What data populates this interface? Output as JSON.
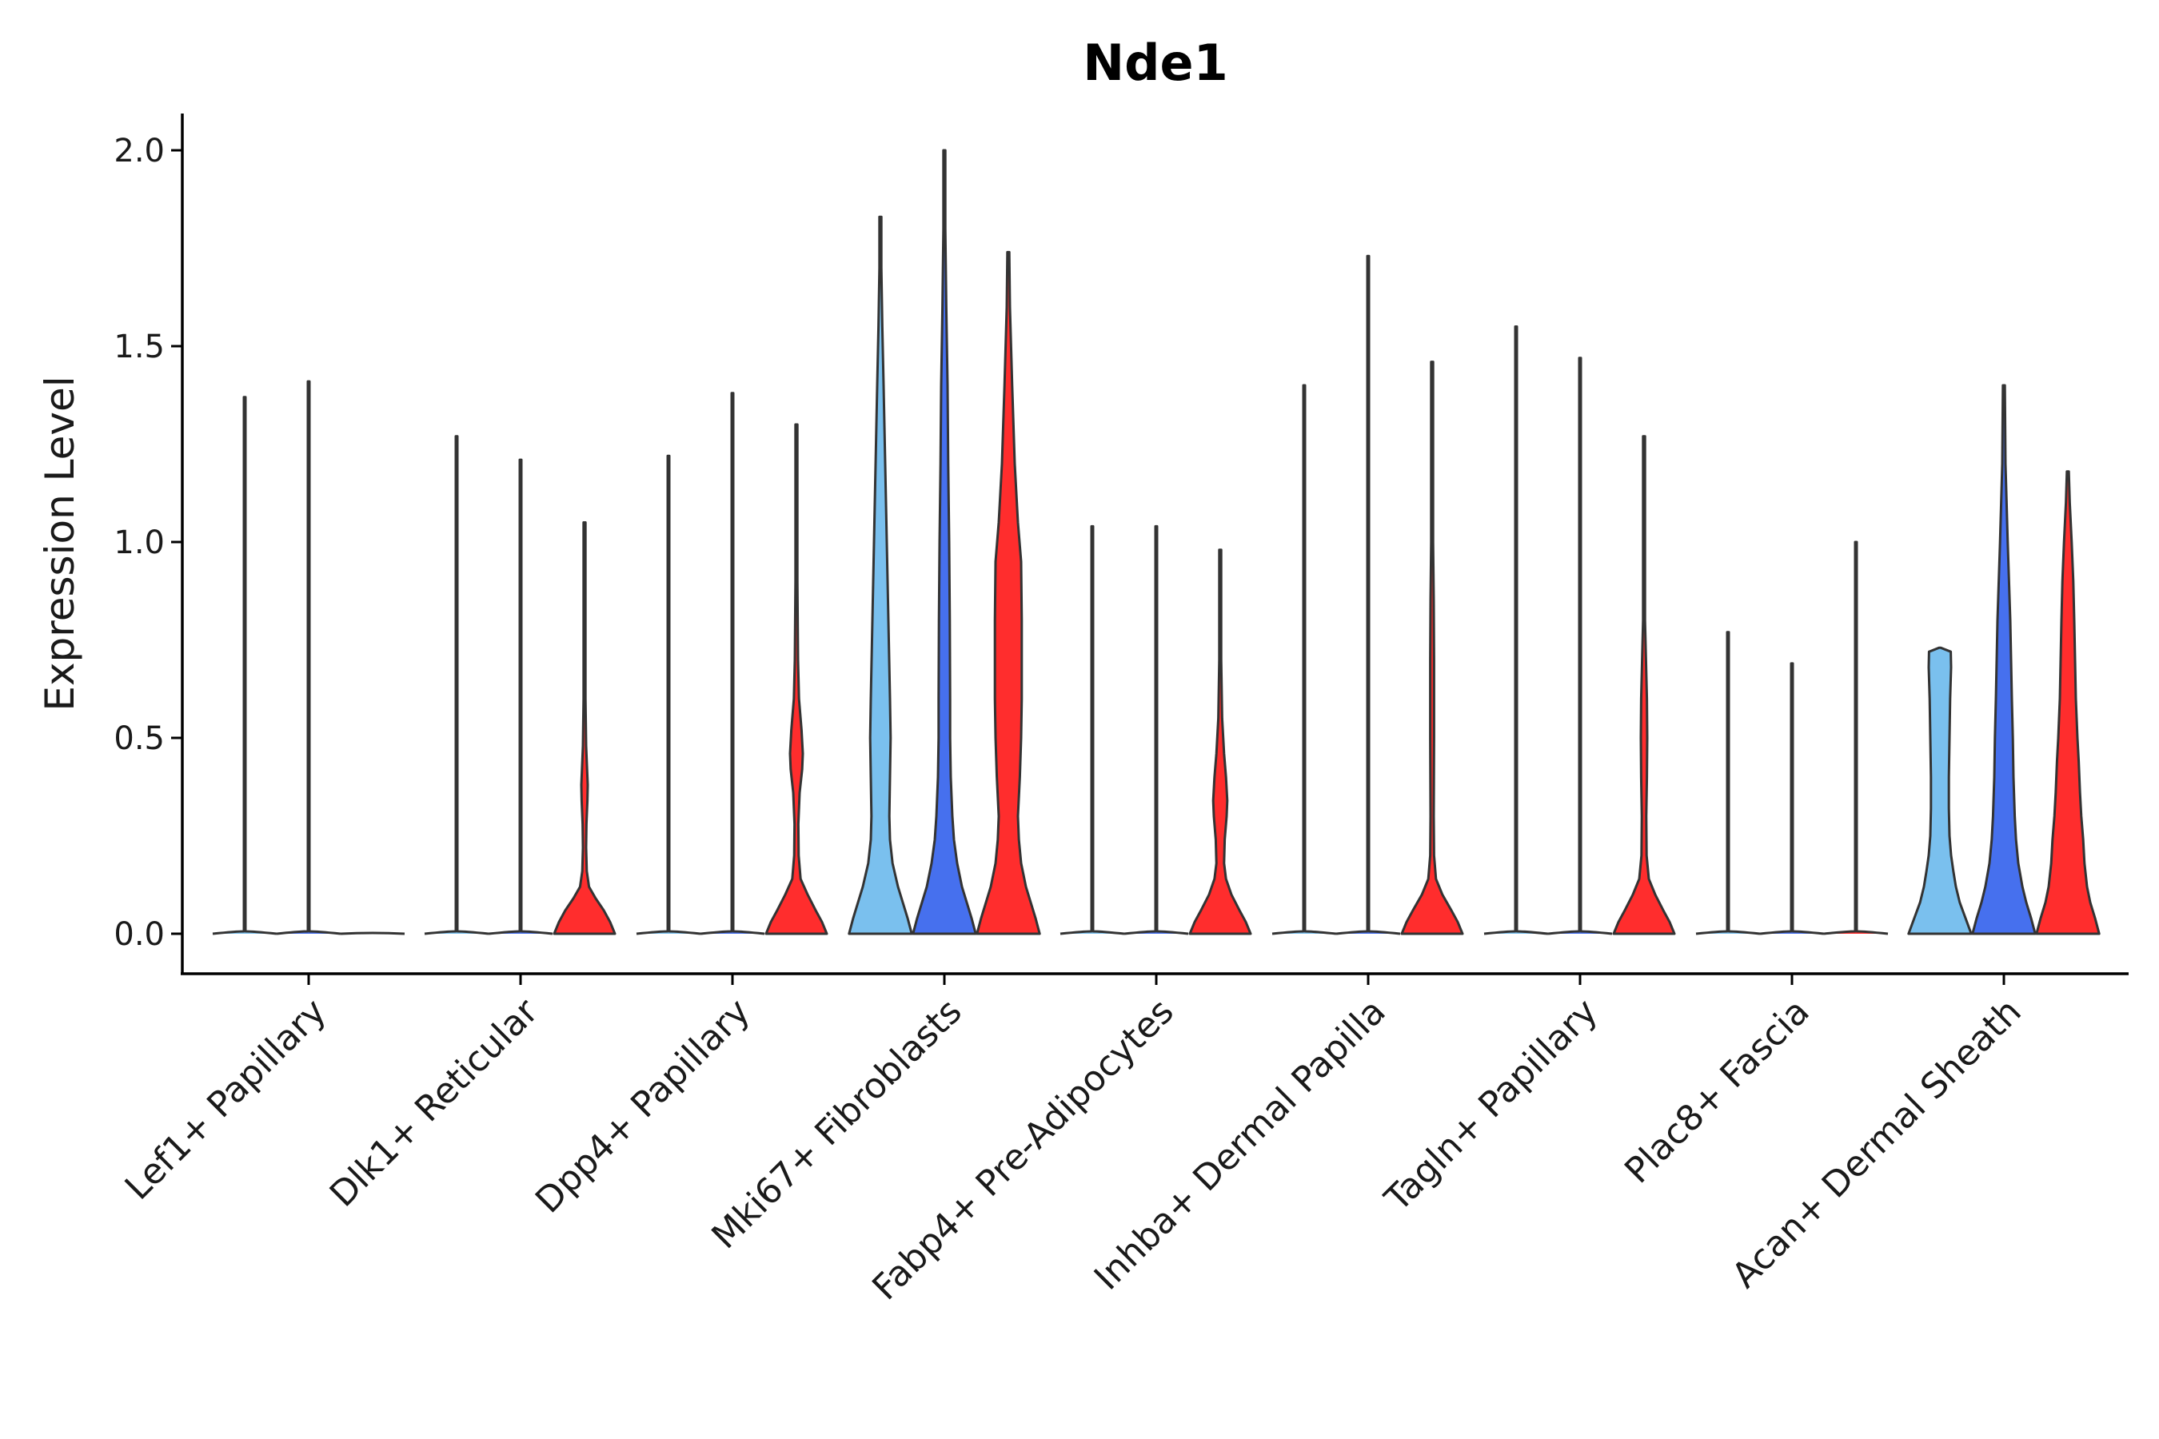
{
  "chart_data": {
    "type": "violin",
    "title": "Nde1",
    "xlabel": "",
    "ylabel": "Expression Level",
    "ylim": [
      -0.1,
      2.1
    ],
    "yticks": [
      "0.0",
      "0.5",
      "1.0",
      "1.5",
      "2.0"
    ],
    "grid": false,
    "legend": "none",
    "series_colors": [
      "#7ac0ee",
      "#4670ee",
      "#ff2d2d"
    ],
    "categories": [
      {
        "label": "Lef1+ Papillary",
        "violins": [
          {
            "max": 1.37,
            "profile": "spike"
          },
          {
            "max": 1.41,
            "profile": "spike"
          },
          null
        ]
      },
      {
        "label": "Dlk1+ Reticular",
        "violins": [
          {
            "max": 1.27,
            "profile": "spike"
          },
          {
            "max": 1.21,
            "profile": "spike"
          },
          {
            "max": 1.05,
            "profile": [
              [
                0,
                0.95
              ],
              [
                0.03,
                0.8
              ],
              [
                0.06,
                0.6
              ],
              [
                0.09,
                0.35
              ],
              [
                0.12,
                0.14
              ],
              [
                0.16,
                0.07
              ],
              [
                0.22,
                0.05
              ],
              [
                0.28,
                0.06
              ],
              [
                0.34,
                0.09
              ],
              [
                0.38,
                0.1
              ],
              [
                0.42,
                0.08
              ],
              [
                0.48,
                0.05
              ],
              [
                0.6,
                0.03
              ],
              [
                0.8,
                0.02
              ],
              [
                1.05,
                0
              ]
            ]
          }
        ]
      },
      {
        "label": "Dpp4+ Papillary",
        "violins": [
          {
            "max": 1.22,
            "profile": "spike"
          },
          {
            "max": 1.38,
            "profile": "spike"
          },
          {
            "max": 1.3,
            "profile": [
              [
                0,
                0.95
              ],
              [
                0.03,
                0.8
              ],
              [
                0.06,
                0.6
              ],
              [
                0.1,
                0.35
              ],
              [
                0.14,
                0.13
              ],
              [
                0.2,
                0.07
              ],
              [
                0.28,
                0.06
              ],
              [
                0.36,
                0.1
              ],
              [
                0.42,
                0.18
              ],
              [
                0.46,
                0.2
              ],
              [
                0.52,
                0.16
              ],
              [
                0.6,
                0.08
              ],
              [
                0.7,
                0.05
              ],
              [
                0.9,
                0.03
              ],
              [
                1.3,
                0
              ]
            ]
          }
        ]
      },
      {
        "label": "Mki67+ Fibroblasts",
        "violins": [
          {
            "max": 1.83,
            "profile": [
              [
                0,
                0.98
              ],
              [
                0.04,
                0.85
              ],
              [
                0.08,
                0.7
              ],
              [
                0.12,
                0.55
              ],
              [
                0.18,
                0.38
              ],
              [
                0.24,
                0.3
              ],
              [
                0.3,
                0.28
              ],
              [
                0.4,
                0.3
              ],
              [
                0.5,
                0.32
              ],
              [
                0.6,
                0.3
              ],
              [
                0.8,
                0.25
              ],
              [
                1.0,
                0.2
              ],
              [
                1.2,
                0.15
              ],
              [
                1.4,
                0.1
              ],
              [
                1.55,
                0.06
              ],
              [
                1.7,
                0.03
              ],
              [
                1.83,
                0
              ]
            ]
          },
          {
            "max": 2.0,
            "profile": [
              [
                0,
                0.98
              ],
              [
                0.04,
                0.85
              ],
              [
                0.08,
                0.7
              ],
              [
                0.12,
                0.55
              ],
              [
                0.18,
                0.4
              ],
              [
                0.24,
                0.3
              ],
              [
                0.3,
                0.25
              ],
              [
                0.4,
                0.2
              ],
              [
                0.5,
                0.18
              ],
              [
                0.6,
                0.18
              ],
              [
                0.8,
                0.17
              ],
              [
                1.0,
                0.15
              ],
              [
                1.2,
                0.12
              ],
              [
                1.4,
                0.1
              ],
              [
                1.6,
                0.06
              ],
              [
                1.8,
                0.03
              ],
              [
                2.0,
                0
              ]
            ]
          },
          {
            "max": 1.74,
            "profile": [
              [
                0,
                0.98
              ],
              [
                0.04,
                0.85
              ],
              [
                0.08,
                0.7
              ],
              [
                0.12,
                0.55
              ],
              [
                0.18,
                0.4
              ],
              [
                0.24,
                0.33
              ],
              [
                0.3,
                0.3
              ],
              [
                0.4,
                0.36
              ],
              [
                0.5,
                0.4
              ],
              [
                0.6,
                0.42
              ],
              [
                0.8,
                0.42
              ],
              [
                0.95,
                0.4
              ],
              [
                1.05,
                0.3
              ],
              [
                1.2,
                0.2
              ],
              [
                1.4,
                0.12
              ],
              [
                1.6,
                0.05
              ],
              [
                1.74,
                0
              ]
            ]
          }
        ]
      },
      {
        "label": "Fabp4+ Pre-Adipocytes",
        "violins": [
          {
            "max": 1.04,
            "profile": "spike"
          },
          {
            "max": 1.04,
            "profile": "spike"
          },
          {
            "max": 0.98,
            "profile": [
              [
                0,
                0.95
              ],
              [
                0.03,
                0.8
              ],
              [
                0.06,
                0.6
              ],
              [
                0.1,
                0.35
              ],
              [
                0.14,
                0.18
              ],
              [
                0.18,
                0.12
              ],
              [
                0.24,
                0.14
              ],
              [
                0.3,
                0.2
              ],
              [
                0.34,
                0.22
              ],
              [
                0.4,
                0.18
              ],
              [
                0.46,
                0.12
              ],
              [
                0.55,
                0.06
              ],
              [
                0.7,
                0.03
              ],
              [
                0.98,
                0
              ]
            ]
          }
        ]
      },
      {
        "label": "Inhba+ Dermal Papilla",
        "violins": [
          {
            "max": 1.4,
            "profile": "spike"
          },
          {
            "max": 1.73,
            "profile": "spike"
          },
          {
            "max": 1.46,
            "profile": [
              [
                0,
                0.95
              ],
              [
                0.03,
                0.8
              ],
              [
                0.06,
                0.6
              ],
              [
                0.1,
                0.32
              ],
              [
                0.14,
                0.12
              ],
              [
                0.2,
                0.06
              ],
              [
                0.3,
                0.05
              ],
              [
                0.5,
                0.06
              ],
              [
                0.7,
                0.06
              ],
              [
                0.85,
                0.05
              ],
              [
                1.0,
                0.03
              ],
              [
                1.2,
                0.02
              ],
              [
                1.46,
                0
              ]
            ]
          }
        ]
      },
      {
        "label": "Tagln+ Papillary",
        "violins": [
          {
            "max": 1.55,
            "profile": "spike"
          },
          {
            "max": 1.47,
            "profile": "spike"
          },
          {
            "max": 1.27,
            "profile": [
              [
                0,
                0.95
              ],
              [
                0.03,
                0.8
              ],
              [
                0.06,
                0.6
              ],
              [
                0.1,
                0.35
              ],
              [
                0.14,
                0.15
              ],
              [
                0.2,
                0.08
              ],
              [
                0.3,
                0.07
              ],
              [
                0.4,
                0.09
              ],
              [
                0.5,
                0.1
              ],
              [
                0.6,
                0.09
              ],
              [
                0.7,
                0.06
              ],
              [
                0.8,
                0.03
              ],
              [
                1.0,
                0.02
              ],
              [
                1.27,
                0
              ]
            ]
          }
        ]
      },
      {
        "label": "Plac8+ Fascia",
        "violins": [
          {
            "max": 0.77,
            "profile": "spike"
          },
          {
            "max": 0.69,
            "profile": "spike"
          },
          {
            "max": 1.0,
            "profile": "spike"
          }
        ]
      },
      {
        "label": "Acan+ Dermal Sheath",
        "violins": [
          {
            "max": 0.73,
            "profile": [
              [
                0,
                0.98
              ],
              [
                0.04,
                0.8
              ],
              [
                0.08,
                0.62
              ],
              [
                0.12,
                0.5
              ],
              [
                0.16,
                0.42
              ],
              [
                0.2,
                0.35
              ],
              [
                0.25,
                0.3
              ],
              [
                0.32,
                0.28
              ],
              [
                0.4,
                0.28
              ],
              [
                0.5,
                0.3
              ],
              [
                0.6,
                0.32
              ],
              [
                0.68,
                0.35
              ],
              [
                0.72,
                0.34
              ],
              [
                0.73,
                0
              ]
            ]
          },
          {
            "max": 1.4,
            "profile": [
              [
                0,
                0.98
              ],
              [
                0.04,
                0.85
              ],
              [
                0.08,
                0.7
              ],
              [
                0.12,
                0.58
              ],
              [
                0.18,
                0.45
              ],
              [
                0.24,
                0.38
              ],
              [
                0.3,
                0.34
              ],
              [
                0.4,
                0.3
              ],
              [
                0.5,
                0.28
              ],
              [
                0.6,
                0.25
              ],
              [
                0.8,
                0.2
              ],
              [
                1.0,
                0.12
              ],
              [
                1.2,
                0.05
              ],
              [
                1.4,
                0
              ]
            ]
          },
          {
            "max": 1.18,
            "profile": [
              [
                0,
                0.98
              ],
              [
                0.04,
                0.85
              ],
              [
                0.08,
                0.7
              ],
              [
                0.12,
                0.6
              ],
              [
                0.18,
                0.52
              ],
              [
                0.24,
                0.48
              ],
              [
                0.3,
                0.42
              ],
              [
                0.36,
                0.38
              ],
              [
                0.44,
                0.34
              ],
              [
                0.5,
                0.3
              ],
              [
                0.6,
                0.25
              ],
              [
                0.8,
                0.2
              ],
              [
                0.9,
                0.17
              ],
              [
                1.0,
                0.12
              ],
              [
                1.1,
                0.06
              ],
              [
                1.18,
                0
              ]
            ]
          }
        ]
      }
    ]
  }
}
